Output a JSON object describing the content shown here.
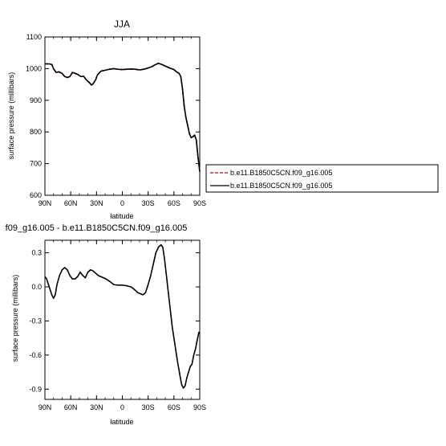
{
  "chart_data": [
    {
      "type": "line",
      "title": "JJA",
      "xlabel": "latitude",
      "ylabel": "surface pressure (millibars)",
      "xlim": [
        90,
        -90
      ],
      "ylim": [
        600,
        1100
      ],
      "xticks": [
        {
          "value": 90,
          "label": "90N"
        },
        {
          "value": 60,
          "label": "60N"
        },
        {
          "value": 30,
          "label": "30N"
        },
        {
          "value": 0,
          "label": "0"
        },
        {
          "value": -30,
          "label": "30S"
        },
        {
          "value": -60,
          "label": "60S"
        },
        {
          "value": -90,
          "label": "90S"
        }
      ],
      "yticks": [
        {
          "value": 1100,
          "label": "1100"
        },
        {
          "value": 1000,
          "label": "1000"
        },
        {
          "value": 900,
          "label": "900"
        },
        {
          "value": 800,
          "label": "800"
        },
        {
          "value": 700,
          "label": "700"
        },
        {
          "value": 600,
          "label": "600"
        }
      ],
      "grid": false,
      "legend_position": "right",
      "x": [
        90,
        85,
        82,
        80,
        77,
        74,
        70,
        67,
        64,
        61,
        58,
        55,
        52,
        50,
        48,
        45,
        42,
        40,
        38,
        36,
        34,
        31,
        29,
        25,
        20,
        15,
        10,
        5,
        0,
        -5,
        -10,
        -15,
        -20,
        -25,
        -30,
        -34,
        -38,
        -42,
        -46,
        -50,
        -55,
        -60,
        -63,
        -66,
        -68,
        -70,
        -72,
        -74,
        -76,
        -78,
        -80,
        -82,
        -84,
        -86,
        -88,
        -90
      ],
      "series": [
        {
          "name": "b.e11.B1850C5CN.f09_g16.005",
          "color": "#cc0000",
          "dash": true,
          "values": [
            1015,
            1015,
            1013,
            1000,
            988,
            990,
            985,
            975,
            972,
            975,
            988,
            985,
            982,
            978,
            975,
            976,
            965,
            960,
            955,
            948,
            952,
            965,
            980,
            992,
            995,
            998,
            1000,
            998,
            997,
            998,
            999,
            998,
            996,
            998,
            1002,
            1006,
            1012,
            1017,
            1013,
            1008,
            1002,
            997,
            990,
            985,
            975,
            935,
            880,
            845,
            820,
            795,
            782,
            785,
            790,
            775,
            720,
            675
          ]
        },
        {
          "name": "b.e11.B1850C5CN.f09_g16.005",
          "color": "#000000",
          "dash": false,
          "values": [
            1015,
            1015,
            1013,
            1000,
            988,
            990,
            985,
            975,
            972,
            975,
            988,
            985,
            982,
            978,
            975,
            976,
            965,
            960,
            955,
            948,
            952,
            965,
            980,
            992,
            995,
            998,
            1000,
            998,
            997,
            998,
            999,
            998,
            996,
            998,
            1002,
            1006,
            1012,
            1017,
            1013,
            1008,
            1002,
            997,
            990,
            985,
            975,
            935,
            880,
            845,
            820,
            795,
            782,
            785,
            790,
            775,
            720,
            675
          ]
        }
      ]
    },
    {
      "type": "line",
      "title": "f09_g16.005 - b.e11.B1850C5CN.f09_g16.005",
      "xlabel": "latitude",
      "ylabel": "surface pressure (millibars)",
      "xlim": [
        90,
        -90
      ],
      "ylim": [
        -0.99,
        0.41
      ],
      "xticks": [
        {
          "value": 90,
          "label": "90N"
        },
        {
          "value": 60,
          "label": "60N"
        },
        {
          "value": 30,
          "label": "30N"
        },
        {
          "value": 0,
          "label": "0"
        },
        {
          "value": -30,
          "label": "30S"
        },
        {
          "value": -60,
          "label": "60S"
        },
        {
          "value": -90,
          "label": "90S"
        }
      ],
      "yticks": [
        {
          "value": 0.3,
          "label": "0.3"
        },
        {
          "value": 0.0,
          "label": "0.0"
        },
        {
          "value": -0.3,
          "label": "-0.3"
        },
        {
          "value": -0.6,
          "label": "-0.6"
        },
        {
          "value": -0.9,
          "label": "-0.9"
        }
      ],
      "grid": false,
      "x": [
        90,
        88,
        85,
        82,
        80,
        78,
        76,
        73,
        70,
        67,
        64,
        61,
        58,
        55,
        52,
        49,
        46,
        43,
        40,
        37,
        34,
        31,
        28,
        25,
        22,
        19,
        15,
        10,
        5,
        0,
        -5,
        -10,
        -12,
        -15,
        -18,
        -21,
        -24,
        -27,
        -30,
        -33,
        -36,
        -39,
        -42,
        -45,
        -47,
        -49,
        -52,
        -55,
        -58,
        -61,
        -64,
        -67,
        -69,
        -71,
        -73,
        -75,
        -77,
        -79,
        -81,
        -83,
        -85,
        -87,
        -89,
        -90
      ],
      "series": [
        {
          "color": "#000000",
          "values": [
            0.09,
            0.07,
            0.0,
            -0.07,
            -0.1,
            -0.07,
            0.02,
            0.1,
            0.15,
            0.17,
            0.15,
            0.1,
            0.07,
            0.07,
            0.09,
            0.13,
            0.1,
            0.08,
            0.13,
            0.15,
            0.14,
            0.12,
            0.1,
            0.09,
            0.08,
            0.07,
            0.05,
            0.02,
            0.015,
            0.015,
            0.01,
            0.0,
            -0.01,
            -0.03,
            -0.05,
            -0.06,
            -0.07,
            -0.05,
            0.02,
            0.1,
            0.2,
            0.3,
            0.35,
            0.37,
            0.35,
            0.25,
            0.05,
            -0.15,
            -0.35,
            -0.5,
            -0.65,
            -0.78,
            -0.86,
            -0.89,
            -0.87,
            -0.8,
            -0.75,
            -0.7,
            -0.68,
            -0.6,
            -0.55,
            -0.47,
            -0.4,
            -0.4
          ]
        }
      ]
    }
  ]
}
